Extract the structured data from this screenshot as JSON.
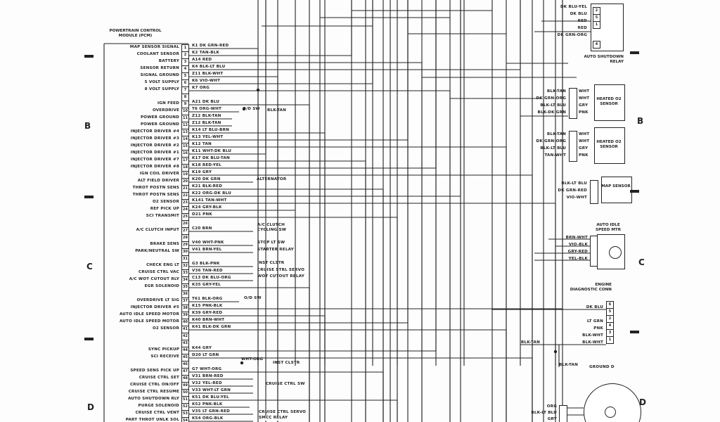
{
  "pcm": {
    "title": "POWERTRAIN CONTROL MODULE (PCM)",
    "pins": [
      {
        "pin": "1",
        "label": "MAP SENSOR SIGNAL",
        "wire": "K1 DK GRN-RED"
      },
      {
        "pin": "2",
        "label": "COOLANT SENSOR",
        "wire": "K2 TAN-BLK"
      },
      {
        "pin": "3",
        "label": "BATTERY",
        "wire": "A14 RED"
      },
      {
        "pin": "4",
        "label": "SENSOR RETURN",
        "wire": "K4 BLK-LT BLU"
      },
      {
        "pin": "5",
        "label": "SIGNAL GROUND",
        "wire": "Z11 BLK-WHT"
      },
      {
        "pin": "6",
        "label": "5 VOLT SUPPLY",
        "wire": "K6 VIO-WHT"
      },
      {
        "pin": "7",
        "label": "8 VOLT SUPPLY",
        "wire": "K7 ORG"
      },
      {
        "pin": "8",
        "label": "",
        "wire": ""
      },
      {
        "pin": "9",
        "label": "IGN FEED",
        "wire": "A21 DK BLU"
      },
      {
        "pin": "10",
        "label": "OVERDRIVE",
        "wire": "T6 ORG-WHT"
      },
      {
        "pin": "11",
        "label": "POWER GROUND",
        "wire": "Z12 BLK-TAN"
      },
      {
        "pin": "12",
        "label": "POWER GROUND",
        "wire": "Z12 BLK-TAN"
      },
      {
        "pin": "13",
        "label": "INJECTOR DRIVER #4",
        "wire": "K14 LT BLU-BRN"
      },
      {
        "pin": "14",
        "label": "INJECTOR DRIVER #3",
        "wire": "K13 YEL-WHT"
      },
      {
        "pin": "15",
        "label": "INJECTOR DRIVER #2",
        "wire": "K12 TAN"
      },
      {
        "pin": "16",
        "label": "INJECTOR DRIVER #1",
        "wire": "K11 WHT-DK BLU"
      },
      {
        "pin": "17",
        "label": "INJECTOR DRIVER #7",
        "wire": "K17 DK BLU-TAN"
      },
      {
        "pin": "18",
        "label": "INJECTOR DRIVER #8",
        "wire": "K18 RED-YEL"
      },
      {
        "pin": "19",
        "label": "IGN COIL DRIVER",
        "wire": "K19 GRY"
      },
      {
        "pin": "20",
        "label": "ALT FIELD DRIVER",
        "wire": "K20 DK GRN"
      },
      {
        "pin": "21",
        "label": "THROT POSTN SENS",
        "wire": "K21 BLK-RED"
      },
      {
        "pin": "22",
        "label": "THROT POSTN SENS",
        "wire": "K22 ORG-DK BLU"
      },
      {
        "pin": "23",
        "label": "O2 SENSOR",
        "wire": "K141 TAN-WHT"
      },
      {
        "pin": "24",
        "label": "REF PICK UP",
        "wire": "K24 GRY-BLK"
      },
      {
        "pin": "25",
        "label": "SCI TRANSMIT",
        "wire": "D21 PNK"
      },
      {
        "pin": "26",
        "label": "",
        "wire": ""
      },
      {
        "pin": "27",
        "label": "A/C CLUTCH INPUT",
        "wire": "C20 BRN"
      },
      {
        "pin": "28",
        "label": "",
        "wire": ""
      },
      {
        "pin": "29",
        "label": "BRAKE SENS",
        "wire": "V40 WHT-PNK"
      },
      {
        "pin": "30",
        "label": "PARK/NEUTRAL SW",
        "wire": "V41 BRN-YEL"
      },
      {
        "pin": "31",
        "label": "",
        "wire": ""
      },
      {
        "pin": "32",
        "label": "CHECK ENG LT",
        "wire": "G3 BLK-PNK"
      },
      {
        "pin": "33",
        "label": "CRUISE CTRL VAC",
        "wire": "V36 TAN-RED"
      },
      {
        "pin": "34",
        "label": "A/C WOT CUTOUT RLY",
        "wire": "C13 DK BLU-ORG"
      },
      {
        "pin": "35",
        "label": "EGR SOLENOID",
        "wire": "K35 GRY-YEL"
      },
      {
        "pin": "36",
        "label": "",
        "wire": ""
      },
      {
        "pin": "37",
        "label": "OVERDRIVE LT SIG",
        "wire": "T61 BLK-ORG"
      },
      {
        "pin": "38",
        "label": "INJECTOR DRIVER #5",
        "wire": "K15 PNK-BLK"
      },
      {
        "pin": "39",
        "label": "AUTO IDLE SPEED MOTOR",
        "wire": "K39 GRY-RED"
      },
      {
        "pin": "40",
        "label": "AUTO IDLE SPEED MOTOR",
        "wire": "K40 BRN-WHT"
      },
      {
        "pin": "41",
        "label": "O2 SENSOR",
        "wire": "K41 BLK-DK GRN"
      },
      {
        "pin": "42",
        "label": "",
        "wire": ""
      },
      {
        "pin": "43",
        "label": "",
        "wire": ""
      },
      {
        "pin": "44",
        "label": "SYNC PICKUP",
        "wire": "K44 GRY"
      },
      {
        "pin": "45",
        "label": "SCI RECEIVE",
        "wire": "D20 LT GRN"
      },
      {
        "pin": "46",
        "label": "",
        "wire": ""
      },
      {
        "pin": "47",
        "label": "SPEED SENS PICK UP",
        "wire": "G7 WHT-ORG"
      },
      {
        "pin": "48",
        "label": "CRUISE CTRL SET",
        "wire": "V31 BRN-RED"
      },
      {
        "pin": "49",
        "label": "CRUISE CTRL ON/OFF",
        "wire": "V32 YEL-RED"
      },
      {
        "pin": "50",
        "label": "CRUISE CTRL RESUME",
        "wire": "V33 WHT-LT GRN"
      },
      {
        "pin": "51",
        "label": "AUTO SHUTDOWN RLY",
        "wire": "K51 DK BLU-YEL"
      },
      {
        "pin": "52",
        "label": "PURGE SOLENOID",
        "wire": "K52 PNK-BLK"
      },
      {
        "pin": "53",
        "label": "CRUISE CTRL VENT",
        "wire": "V35 LT GRN-RED"
      },
      {
        "pin": "54",
        "label": "PART THROT UNLK SOL",
        "wire": "K54 ORG-BLK"
      }
    ]
  },
  "destinations": {
    "od_sw": "O/D SW",
    "od_wire": "BLK-TAN",
    "alternator": "ALTERNATOR",
    "ac_clutch": "A/C CLUTCH CYCLING SW",
    "stop_lt": "STOP LT SW",
    "starter": "STARTER RELAY",
    "inst_clstr": "INST CLSTR",
    "cruise_servo": "CRUISE STRL SERVO",
    "wot": "WOT CUTOUT RELAY",
    "od_sw2": "O/D SW",
    "inst_wire": "WHT-ORG",
    "inst_clstr2": "INST CLSTR",
    "cruise_sw": "CRUISE CTRL SW",
    "cruise_servo2": "CRUISE CTRL SERVO",
    "smcc": "SMCC RELAY"
  },
  "asd_relay": {
    "caption": "AUTO SHUTDOWN RELAY",
    "wires": [
      "DK BLU-YEL",
      "DK BLU",
      "RED",
      "RED",
      "DK GRN-ORG"
    ],
    "pins": [
      "2",
      "5",
      "1",
      "4"
    ]
  },
  "o2_upper": {
    "caption": "HEATED O2 SENSOR",
    "left": [
      "BLK-TAN",
      "DK GRN-ORG",
      "BLK-LT BLU",
      "BLK-DK GRN"
    ],
    "right": [
      "WHT",
      "WHT",
      "GRY",
      "PNK"
    ]
  },
  "o2_lower": {
    "caption": "HEATED O2 SENSOR",
    "left": [
      "BLK-TAN",
      "DK GRN-ORG",
      "BLK-LT BLU",
      "TAN-WHT"
    ],
    "right": [
      "WHT",
      "WHT",
      "GRY",
      "PNK"
    ]
  },
  "map_sensor": {
    "caption": "MAP SENSOR",
    "wires": [
      "BLK-LT BLU",
      "DK GRN-RED",
      "VIO-WHT"
    ]
  },
  "idle_motor": {
    "caption": "AUTO IDLE SPEED MTR",
    "wires": [
      "BRN-WHT",
      "VIO-BLK",
      "GRY-RED",
      "YEL-BLK"
    ]
  },
  "diag_conn": {
    "caption": "ENGINE DIAGNOSTIC CONN",
    "pins": [
      "6",
      "5",
      "2",
      "4",
      "3",
      "1"
    ],
    "wires": [
      "DK BLU",
      "LT GRN",
      "PNK",
      "BLK-WHT",
      "BLK-WHT"
    ],
    "tan_wire": "BLK-TAN"
  },
  "ground": {
    "wire": "BLK-TAN",
    "label": "GROUND D"
  },
  "distributor": {
    "wires": [
      "ORG",
      "BLK-LT BLU",
      "GRY"
    ]
  },
  "zones": {
    "b": "B",
    "c": "C",
    "d": "D"
  }
}
